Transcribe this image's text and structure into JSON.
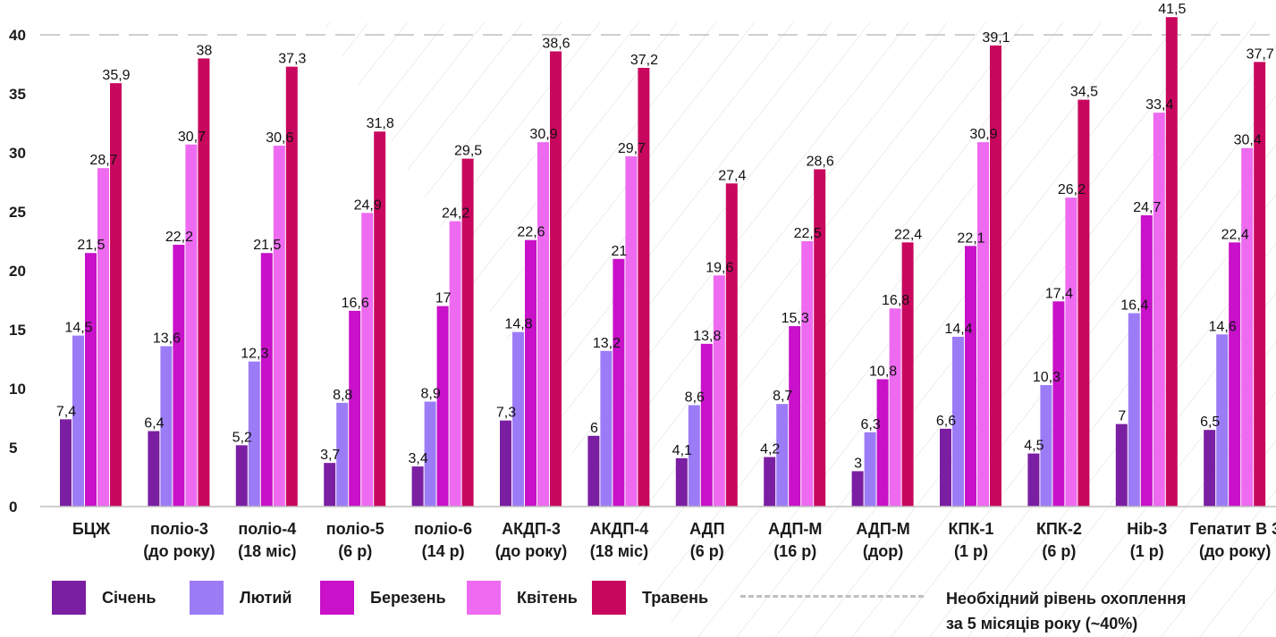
{
  "chart_data": {
    "type": "bar",
    "categories": [
      [
        "БЦЖ"
      ],
      [
        "поліо-3",
        "(до року)"
      ],
      [
        "поліо-4",
        "(18 міс)"
      ],
      [
        "поліо-5",
        "(6 р)"
      ],
      [
        "поліо-6",
        "(14 р)"
      ],
      [
        "АКДП-3",
        "(до року)"
      ],
      [
        "АКДП-4",
        "(18 міс)"
      ],
      [
        "АДП",
        "(6 р)"
      ],
      [
        "АДП-М",
        "(16 р)"
      ],
      [
        "АДП-М",
        "(дор)"
      ],
      [
        "КПК-1",
        "(1 р)"
      ],
      [
        "КПК-2",
        "(6 р)"
      ],
      [
        "Hib-3",
        "(1 р)"
      ],
      [
        "Гепатит В 3",
        "(до року)"
      ]
    ],
    "series": [
      {
        "name": "Січень",
        "color": "#7a1fa2",
        "values": [
          7.4,
          6.4,
          5.2,
          3.7,
          3.4,
          7.3,
          6,
          4.1,
          4.2,
          3,
          6.6,
          4.5,
          7,
          6.5
        ]
      },
      {
        "name": "Лютий",
        "color": "#9c7cf6",
        "values": [
          14.5,
          13.6,
          12.3,
          8.8,
          8.9,
          14.8,
          13.2,
          8.6,
          8.7,
          6.3,
          14.4,
          10.3,
          16.4,
          14.6
        ]
      },
      {
        "name": "Березень",
        "color": "#c811c8",
        "values": [
          21.5,
          22.2,
          21.5,
          16.6,
          17,
          22.6,
          21,
          13.8,
          15.3,
          10.8,
          22.1,
          17.4,
          24.7,
          22.4
        ]
      },
      {
        "name": "Квітень",
        "color": "#ee6af0",
        "values": [
          28.7,
          30.7,
          30.6,
          24.9,
          24.2,
          30.9,
          29.7,
          19.6,
          22.5,
          16.8,
          30.9,
          26.2,
          33.4,
          30.4
        ]
      },
      {
        "name": "Травень",
        "color": "#c8085e",
        "values": [
          35.9,
          38,
          37.3,
          31.8,
          29.5,
          38.6,
          37.2,
          27.4,
          28.6,
          22.4,
          39.1,
          34.5,
          41.5,
          37.7
        ]
      }
    ],
    "y_ticks": [
      "0",
      "5",
      "10",
      "15",
      "20",
      "25",
      "30",
      "35",
      "40"
    ],
    "ylim": [
      0,
      42
    ],
    "reference_line": {
      "value": 40,
      "label": [
        "Необхідний рівень охоплення",
        "за 5 місяців року (~40%)"
      ]
    },
    "legend_position": "bottom",
    "grid": false
  }
}
